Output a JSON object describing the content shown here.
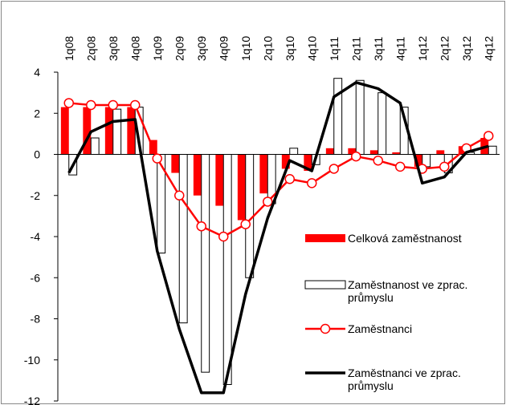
{
  "chart_data": {
    "type": "bar-line",
    "categories": [
      "1q08",
      "2q08",
      "3q08",
      "4q08",
      "1q09",
      "2q09",
      "3q09",
      "4q09",
      "1q10",
      "2q10",
      "3q10",
      "4q10",
      "1q11",
      "2q11",
      "3q11",
      "4q11",
      "1q12",
      "2q12",
      "3q12",
      "4q12"
    ],
    "series": [
      {
        "name": "Celková zaměstnanost",
        "kind": "bar",
        "color": "#ff0000",
        "values": [
          2.3,
          2.3,
          2.3,
          2.3,
          0.7,
          -0.9,
          -2.0,
          -2.5,
          -3.2,
          -1.9,
          -0.7,
          -0.8,
          0.3,
          0.3,
          0.2,
          0.1,
          -0.6,
          0.2,
          0.4,
          0.8
        ]
      },
      {
        "name": "Zaměstnanost ve zprac. průmyslu",
        "kind": "bar",
        "color": "#ffffff",
        "values": [
          -1.0,
          0.8,
          2.2,
          2.3,
          -4.8,
          -8.2,
          -10.6,
          -11.2,
          -6.0,
          -2.4,
          0.3,
          -0.5,
          3.7,
          3.6,
          3.0,
          2.3,
          -0.6,
          -0.9,
          0.1,
          0.4
        ]
      },
      {
        "name": "Zaměstnanci",
        "kind": "line-marker",
        "color": "#ff0000",
        "values": [
          2.5,
          2.4,
          2.4,
          2.4,
          -0.2,
          -2.0,
          -3.5,
          -4.0,
          -3.4,
          -2.3,
          -1.2,
          -1.4,
          -0.7,
          -0.1,
          -0.3,
          -0.6,
          -0.7,
          -0.6,
          0.3,
          0.9
        ]
      },
      {
        "name": "Zaměstnanci ve zprac. průmyslu",
        "kind": "line",
        "color": "#000000",
        "values": [
          -0.9,
          1.1,
          1.6,
          1.7,
          -4.7,
          -8.5,
          -11.6,
          -11.6,
          -6.8,
          -3.1,
          -0.3,
          -0.8,
          2.8,
          3.5,
          3.2,
          2.5,
          -1.4,
          -1.1,
          0.1,
          0.4
        ]
      }
    ],
    "ylim": [
      -12,
      4
    ],
    "yticks": [
      4,
      2,
      0,
      -2,
      -4,
      -6,
      -8,
      -10,
      -12
    ],
    "grid": false
  }
}
